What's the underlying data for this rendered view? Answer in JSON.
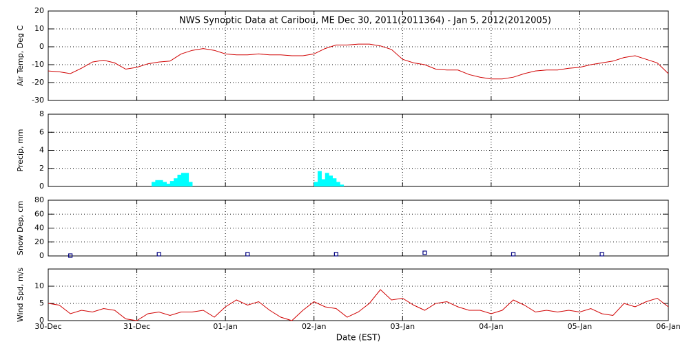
{
  "chart_data": [
    {
      "type": "line",
      "title": "NWS Synoptic Data at Caribou, ME   Dec 30, 2011(2011364) - Jan  5, 2012(2012005)",
      "ylabel": "Air Temp, Deg C",
      "color": "#d00000",
      "x": [
        0,
        3,
        6,
        9,
        12,
        15,
        18,
        21,
        24,
        27,
        30,
        33,
        36,
        39,
        42,
        45,
        48,
        51,
        54,
        57,
        60,
        63,
        66,
        69,
        72,
        75,
        78,
        81,
        84,
        87,
        90,
        93,
        96,
        99,
        102,
        105,
        108,
        111,
        114,
        117,
        120,
        123,
        126,
        129,
        132,
        135,
        138,
        141,
        144,
        147,
        150,
        153,
        156,
        159,
        162,
        165,
        168
      ],
      "values": [
        -13.5,
        -14,
        -15,
        -12,
        -8.5,
        -7.5,
        -9,
        -12.5,
        -11.5,
        -9.5,
        -8.5,
        -8,
        -4,
        -2,
        -1,
        -2,
        -4,
        -4.5,
        -4.5,
        -4,
        -4.5,
        -4.5,
        -5,
        -5,
        -4,
        -1,
        1,
        1,
        1.5,
        1.5,
        0.5,
        -1.5,
        -7,
        -9,
        -10,
        -12.5,
        -13,
        -13,
        -15.5,
        -17,
        -18,
        -18,
        -17,
        -15,
        -13.5,
        -13,
        -13,
        -12,
        -11.5,
        -10,
        -9,
        -8,
        -6,
        -5,
        -7,
        -9,
        -15
      ],
      "xlim": [
        0,
        168
      ],
      "xticks": [
        0,
        24,
        48,
        72,
        96,
        120,
        144,
        168
      ],
      "ylim": [
        -30,
        20
      ],
      "yticks": [
        -30,
        -20,
        -10,
        0,
        10,
        20
      ],
      "grid": true
    },
    {
      "type": "bar",
      "ylabel": "Precip, mm",
      "color": "#00ffff",
      "x": [
        28,
        29,
        30,
        31,
        32,
        33,
        34,
        35,
        36,
        37,
        38,
        72,
        73,
        74,
        75,
        76,
        77,
        78,
        79
      ],
      "values": [
        0.5,
        0.7,
        0.7,
        0.5,
        0.3,
        0.6,
        0.9,
        1.3,
        1.5,
        1.5,
        0.5,
        0.5,
        1.7,
        0.8,
        1.5,
        1.2,
        0.9,
        0.5,
        0.2
      ],
      "xlim": [
        0,
        168
      ],
      "xticks": [
        0,
        24,
        48,
        72,
        96,
        120,
        144,
        168
      ],
      "ylim": [
        0,
        8
      ],
      "yticks": [
        0,
        2,
        4,
        6,
        8
      ],
      "grid": true
    },
    {
      "type": "scatter",
      "ylabel": "Snow Dep, cm",
      "color": "#000080",
      "x": [
        6,
        30,
        54,
        78,
        102,
        126,
        150
      ],
      "values": [
        0,
        2,
        2,
        2,
        4,
        2,
        2
      ],
      "xlim": [
        0,
        168
      ],
      "xticks": [
        0,
        24,
        48,
        72,
        96,
        120,
        144,
        168
      ],
      "ylim": [
        0,
        80
      ],
      "yticks": [
        0,
        20,
        40,
        60,
        80
      ],
      "grid": true
    },
    {
      "type": "line",
      "ylabel": "Wind Spd, m/s",
      "xlabel": "Date (EST)",
      "color": "#d00000",
      "x": [
        0,
        3,
        6,
        9,
        12,
        15,
        18,
        21,
        24,
        27,
        30,
        33,
        36,
        39,
        42,
        45,
        48,
        51,
        54,
        57,
        60,
        63,
        66,
        69,
        72,
        75,
        78,
        81,
        84,
        87,
        90,
        93,
        96,
        99,
        102,
        105,
        108,
        111,
        114,
        117,
        120,
        123,
        126,
        129,
        132,
        135,
        138,
        141,
        144,
        147,
        150,
        153,
        156,
        159,
        162,
        165,
        168
      ],
      "values": [
        5,
        4.5,
        2,
        3,
        2.5,
        3.5,
        3,
        0.5,
        0,
        2,
        2.5,
        1.5,
        2.5,
        2.5,
        3,
        1,
        4,
        6,
        4.5,
        5.5,
        3,
        1,
        0,
        3,
        5.5,
        4,
        3.5,
        1,
        2.5,
        5,
        9,
        6,
        6.5,
        4.5,
        3,
        5,
        5.5,
        4,
        3,
        3,
        2,
        3,
        6,
        4.5,
        2.5,
        3,
        2.5,
        3,
        2.5,
        3.5,
        2,
        1.5,
        5,
        4,
        5.5,
        6.5,
        4
      ],
      "xlim": [
        0,
        168
      ],
      "xticks": [
        {
          "value": 0,
          "label": "30-Dec"
        },
        {
          "value": 24,
          "label": "31-Dec"
        },
        {
          "value": 48,
          "label": "01-Jan"
        },
        {
          "value": 72,
          "label": "02-Jan"
        },
        {
          "value": 96,
          "label": "03-Jan"
        },
        {
          "value": 120,
          "label": "04-Jan"
        },
        {
          "value": 144,
          "label": "05-Jan"
        },
        {
          "value": 168,
          "label": "06-Jan"
        }
      ],
      "ylim": [
        0,
        15
      ],
      "yticks": [
        0,
        5,
        10
      ],
      "grid": true
    }
  ]
}
